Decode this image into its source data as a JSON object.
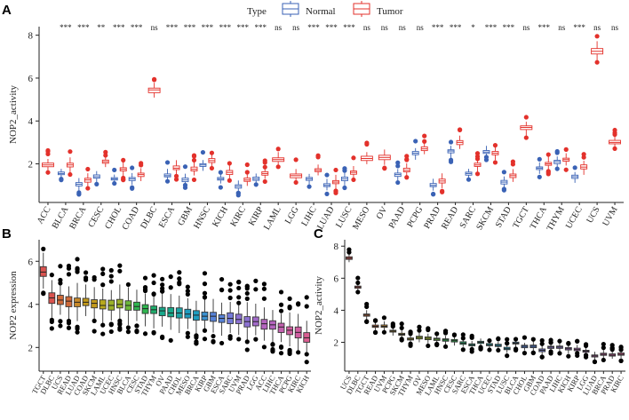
{
  "colors": {
    "normal": "#3a62b5",
    "tumor": "#e3312b",
    "axis": "#222222",
    "box_b_palette": [
      "#d9534f",
      "#cf6a3a",
      "#c88a2a",
      "#c39a1c",
      "#b8a91b",
      "#9bb229",
      "#6bb83a",
      "#2fb54f",
      "#1fae6c",
      "#18a88a",
      "#1aa3a6",
      "#1d9cbf",
      "#3a90cf",
      "#5782d6",
      "#747ad8",
      "#8c72d2",
      "#a26bca",
      "#b465be",
      "#c461b0",
      "#d05ea1",
      "#d95d90"
    ],
    "box_c_palette": [
      "#d9534f",
      "#cf6a3a",
      "#c88a2a",
      "#c39a1c",
      "#b8a91b",
      "#9bb229",
      "#6bb83a",
      "#2fb54f",
      "#1fae6c",
      "#18a88a",
      "#1aa3a6",
      "#1d9cbf",
      "#3a90cf",
      "#5782d6",
      "#747ad8",
      "#8c72d2",
      "#a26bca",
      "#b465be",
      "#c461b0",
      "#d05ea1",
      "#d95d90"
    ]
  },
  "panel_labels": {
    "a": "A",
    "b": "B",
    "c": "C"
  },
  "legend": {
    "title": "Type",
    "normal": "Normal",
    "tumor": "Tumor"
  },
  "chart_data": [
    {
      "id": "A",
      "type": "box",
      "ylabel": "NOP2_activity",
      "ylim": [
        0.2,
        8.4
      ],
      "yticks": [
        2,
        4,
        6,
        8
      ],
      "categories": [
        "ACC",
        "BLCA",
        "BRCA",
        "CESC",
        "CHOL",
        "COAD",
        "DLBC",
        "ESCA",
        "GBM",
        "HNSC",
        "KICH",
        "KIRC",
        "KIRP",
        "LAML",
        "LGG",
        "LIHC",
        "LUAD",
        "LUSC",
        "MESO",
        "OV",
        "PAAD",
        "PCPG",
        "PRAD",
        "READ",
        "SARC",
        "SKCM",
        "STAD",
        "TGCT",
        "THCA",
        "THYM",
        "UCEC",
        "UCS",
        "UVM"
      ],
      "significance": [
        "",
        "***",
        "***",
        "**",
        "***",
        "***",
        "ns",
        "***",
        "***",
        "***",
        "***",
        "***",
        "***",
        "ns",
        "ns",
        "***",
        "***",
        "***",
        "ns",
        "ns",
        "ns",
        "ns",
        "***",
        "***",
        "*",
        "***",
        "***",
        "ns",
        "***",
        "ns",
        "***",
        "ns",
        "ns"
      ],
      "series": [
        {
          "name": "Normal",
          "medians": [
            null,
            1.55,
            1.05,
            1.4,
            1.3,
            1.3,
            null,
            1.45,
            1.25,
            1.95,
            1.3,
            0.95,
            1.3,
            null,
            null,
            1.3,
            1.0,
            1.3,
            null,
            null,
            1.5,
            2.5,
            1.0,
            2.6,
            1.55,
            2.55,
            1.15,
            null,
            1.8,
            2.1,
            1.4,
            null,
            null
          ]
        },
        {
          "name": "Tumor",
          "medians": [
            1.95,
            1.95,
            1.25,
            2.1,
            1.75,
            1.5,
            5.45,
            1.8,
            1.75,
            2.15,
            1.6,
            1.25,
            1.55,
            2.2,
            1.45,
            1.7,
            1.15,
            1.6,
            2.25,
            2.3,
            1.7,
            2.7,
            1.2,
            3.0,
            1.95,
            2.5,
            1.45,
            3.7,
            2.0,
            2.2,
            1.85,
            7.25,
            3.0
          ]
        }
      ]
    },
    {
      "id": "B",
      "type": "box",
      "ylabel": "NOP2 expression",
      "ylim": [
        0.9,
        7.0
      ],
      "yticks": [
        2,
        4,
        6
      ],
      "categories": [
        "TGCT",
        "DLBC",
        "UCS",
        "READ",
        "LUAD",
        "COAD",
        "SKCM",
        "LAML",
        "UCEC",
        "HNSC",
        "BLCA",
        "CESC",
        "STAD",
        "THYM",
        "OV",
        "PAAD",
        "CHOL",
        "MESO",
        "BRCA",
        "KIRP",
        "GBM",
        "ESCA",
        "SARC",
        "UVM",
        "PRAD",
        "LGG",
        "ACC",
        "LIHC",
        "THCA",
        "PCPG",
        "KIRC",
        "KICH"
      ],
      "medians": [
        5.5,
        4.3,
        4.2,
        4.15,
        4.1,
        4.1,
        4.05,
        3.95,
        3.95,
        4.0,
        3.95,
        3.9,
        3.8,
        3.75,
        3.7,
        3.6,
        3.6,
        3.55,
        3.5,
        3.45,
        3.45,
        3.35,
        3.35,
        3.3,
        3.2,
        3.2,
        3.1,
        3.05,
        2.95,
        2.8,
        2.7,
        2.45
      ]
    },
    {
      "id": "C",
      "type": "box",
      "ylabel": "NOP2_activity",
      "ylim": [
        0.2,
        8.4
      ],
      "yticks": [
        2,
        4,
        6,
        8
      ],
      "categories": [
        "UCS",
        "DLBC",
        "TGCT",
        "READ",
        "UVM",
        "PCPG",
        "SKCM",
        "THYM",
        "OV",
        "MESO",
        "LAML",
        "HNSC",
        "CESC",
        "SARC",
        "ESCA",
        "THCA",
        "UCEC",
        "STAD",
        "LUSC",
        "BLCA",
        "CHOL",
        "GBM",
        "COAD",
        "PAAD",
        "LIHC",
        "KICH",
        "KIRP",
        "LGG",
        "LUAD",
        "BRCA",
        "PRAD",
        "KIRC"
      ],
      "medians": [
        7.25,
        5.45,
        3.7,
        3.0,
        3.0,
        2.7,
        2.5,
        2.2,
        2.3,
        2.25,
        2.2,
        2.15,
        2.1,
        1.95,
        1.85,
        2.0,
        1.85,
        1.8,
        1.6,
        1.95,
        1.75,
        1.75,
        1.5,
        1.7,
        1.7,
        1.6,
        1.55,
        1.45,
        1.15,
        1.25,
        1.2,
        1.25
      ]
    }
  ]
}
